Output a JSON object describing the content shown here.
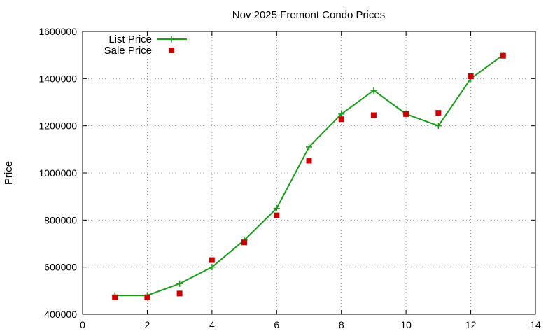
{
  "chart_data": {
    "type": "line",
    "title": "Nov 2025 Fremont Condo Prices",
    "xlabel": "",
    "ylabel": "Price",
    "xlim": [
      0,
      14
    ],
    "ylim": [
      400000,
      1600000
    ],
    "x_ticks": [
      "0",
      "2",
      "4",
      "6",
      "8",
      "10",
      "12",
      "14"
    ],
    "y_ticks": [
      "400000",
      "600000",
      "800000",
      "1000000",
      "1200000",
      "1400000",
      "1600000"
    ],
    "grid": true,
    "legend_position": "top-left",
    "series": [
      {
        "name": "List Price",
        "type": "line",
        "color": "#1a9e1a",
        "marker": "plus",
        "x": [
          1,
          2,
          3,
          4,
          5,
          6,
          7,
          8,
          9,
          10,
          11,
          12,
          13
        ],
        "y": [
          480000,
          480000,
          530000,
          600000,
          715000,
          850000,
          1110000,
          1250000,
          1350000,
          1250000,
          1200000,
          1400000,
          1500000
        ]
      },
      {
        "name": "Sale Price",
        "type": "scatter",
        "color": "#cc0000",
        "marker": "square",
        "x": [
          1,
          2,
          3,
          4,
          5,
          6,
          7,
          8,
          9,
          10,
          11,
          12,
          13
        ],
        "y": [
          472000,
          472000,
          488000,
          630000,
          705000,
          820000,
          1052000,
          1228000,
          1245000,
          1250000,
          1255000,
          1410000,
          1497000
        ]
      }
    ]
  }
}
